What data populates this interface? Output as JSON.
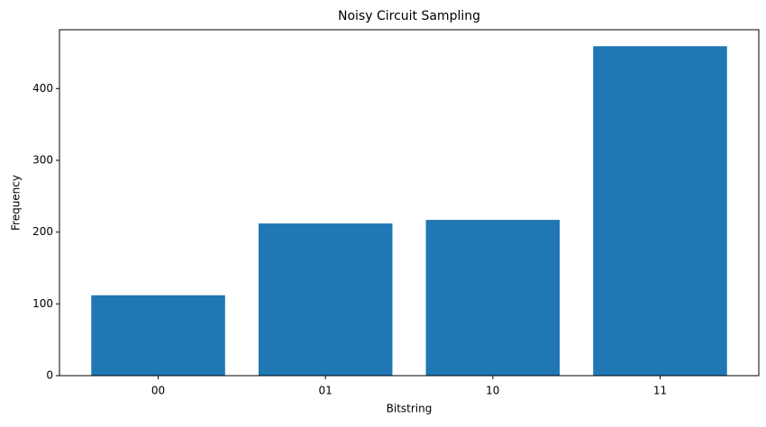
{
  "chart_data": {
    "type": "bar",
    "title": "Noisy Circuit Sampling",
    "x_label": "Bitstring",
    "y_label": "Frequency",
    "categories": [
      "00",
      "01",
      "10",
      "11"
    ],
    "values": [
      112,
      212,
      217,
      459
    ],
    "color": "#1f77b4",
    "ylim": [
      0,
      481.95
    ],
    "yticks": [
      0,
      100,
      200,
      300,
      400
    ],
    "grid": false
  }
}
